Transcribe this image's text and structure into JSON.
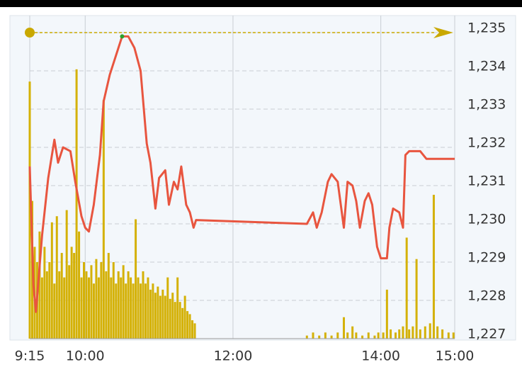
{
  "chart_data": [
    {
      "type": "line",
      "xlim": [
        "9:15",
        "15:00"
      ],
      "xticks": [
        "9:15",
        "10:00",
        "12:00",
        "14:00",
        "15:00"
      ],
      "ylim": [
        1227,
        1235
      ],
      "yticks": [
        {
          "value": 1227,
          "label": "1,227"
        },
        {
          "value": 1228,
          "label": "1,228"
        },
        {
          "value": 1229,
          "label": "1,229"
        },
        {
          "value": 1230,
          "label": "1,230"
        },
        {
          "value": 1231,
          "label": "1,231"
        },
        {
          "value": 1232,
          "label": "1,232"
        },
        {
          "value": 1233,
          "label": "1,233"
        },
        {
          "value": 1234,
          "label": "1,234"
        },
        {
          "value": 1235,
          "label": "1,235"
        }
      ],
      "grid": true,
      "x": [
        "9:15",
        "9:18",
        "9:20",
        "9:25",
        "9:30",
        "9:35",
        "9:38",
        "9:42",
        "9:48",
        "9:52",
        "9:57",
        "10:00",
        "10:03",
        "10:07",
        "10:12",
        "10:15",
        "10:20",
        "10:25",
        "10:30",
        "10:35",
        "10:40",
        "10:45",
        "10:50",
        "10:53",
        "10:57",
        "11:00",
        "11:05",
        "11:08",
        "11:12",
        "11:15",
        "11:18",
        "11:22",
        "11:25",
        "11:28",
        "11:30",
        "13:00",
        "13:05",
        "13:08",
        "13:12",
        "13:17",
        "13:20",
        "13:25",
        "13:30",
        "13:33",
        "13:37",
        "13:40",
        "13:43",
        "13:47",
        "13:50",
        "13:53",
        "13:57",
        "14:00",
        "14:05",
        "14:07",
        "14:10",
        "14:15",
        "14:18",
        "14:20",
        "14:23",
        "14:27",
        "14:32",
        "14:37",
        "15:00"
      ],
      "series": [
        {
          "color": "#e8553f",
          "values": [
            1231.5,
            1228.4,
            1227.7,
            1229.7,
            1231.2,
            1232.2,
            1231.6,
            1232.0,
            1231.9,
            1231.1,
            1230.2,
            1229.9,
            1229.8,
            1230.5,
            1231.8,
            1233.2,
            1233.9,
            1234.4,
            1234.9,
            1234.9,
            1234.6,
            1234.0,
            1232.1,
            1231.6,
            1230.4,
            1231.2,
            1231.4,
            1230.5,
            1231.1,
            1230.9,
            1231.5,
            1230.5,
            1230.3,
            1229.9,
            1230.1,
            1230.0,
            1230.3,
            1229.9,
            1230.3,
            1231.1,
            1231.3,
            1231.1,
            1229.9,
            1231.1,
            1231.0,
            1230.6,
            1229.9,
            1230.6,
            1230.8,
            1230.5,
            1229.4,
            1229.1,
            1229.1,
            1229.9,
            1230.4,
            1230.3,
            1229.9,
            1231.8,
            1231.9,
            1231.9,
            1231.9,
            1231.7,
            1231.7
          ]
        }
      ]
    },
    {
      "type": "bar",
      "xlim": [
        "9:15",
        "15:00"
      ],
      "ylim": [
        0,
        100
      ],
      "x": [
        "9:15",
        "9:17",
        "9:19",
        "9:21",
        "9:23",
        "9:25",
        "9:27",
        "9:29",
        "9:31",
        "9:33",
        "9:35",
        "9:37",
        "9:39",
        "9:41",
        "9:43",
        "9:45",
        "9:47",
        "9:49",
        "9:51",
        "9:53",
        "9:55",
        "9:57",
        "9:59",
        "10:01",
        "10:03",
        "10:05",
        "10:07",
        "10:09",
        "10:11",
        "10:13",
        "10:15",
        "10:17",
        "10:19",
        "10:21",
        "10:23",
        "10:25",
        "10:27",
        "10:29",
        "10:31",
        "10:33",
        "10:35",
        "10:37",
        "10:39",
        "10:41",
        "10:43",
        "10:45",
        "10:47",
        "10:49",
        "10:51",
        "10:53",
        "10:55",
        "10:57",
        "10:59",
        "11:01",
        "11:03",
        "11:05",
        "11:07",
        "11:09",
        "11:11",
        "11:13",
        "11:15",
        "11:17",
        "11:19",
        "11:21",
        "11:23",
        "11:25",
        "11:27",
        "11:29",
        "13:00",
        "13:05",
        "13:10",
        "13:15",
        "13:20",
        "13:25",
        "13:30",
        "13:33",
        "13:37",
        "13:40",
        "13:45",
        "13:50",
        "13:55",
        "13:58",
        "14:02",
        "14:05",
        "14:08",
        "14:12",
        "14:15",
        "14:18",
        "14:21",
        "14:23",
        "14:26",
        "14:29",
        "14:32",
        "14:36",
        "14:40",
        "14:43",
        "14:46",
        "14:50",
        "14:55",
        "14:59"
      ],
      "color": "#d4b106",
      "values": [
        84,
        45,
        30,
        25,
        35,
        20,
        30,
        22,
        25,
        38,
        18,
        40,
        22,
        28,
        20,
        42,
        24,
        30,
        28,
        88,
        35,
        20,
        25,
        22,
        20,
        24,
        18,
        26,
        20,
        25,
        78,
        22,
        28,
        20,
        25,
        18,
        22,
        20,
        24,
        18,
        22,
        20,
        18,
        39,
        20,
        18,
        22,
        18,
        20,
        16,
        18,
        15,
        17,
        14,
        16,
        14,
        20,
        13,
        15,
        12,
        20,
        12,
        10,
        14,
        9,
        8,
        6,
        5,
        1,
        2,
        1,
        2,
        1,
        2,
        7,
        2,
        4,
        2,
        1,
        2,
        1,
        2,
        2,
        16,
        3,
        2,
        3,
        4,
        33,
        3,
        4,
        26,
        3,
        4,
        5,
        47,
        4,
        3,
        2,
        2
      ]
    }
  ]
}
